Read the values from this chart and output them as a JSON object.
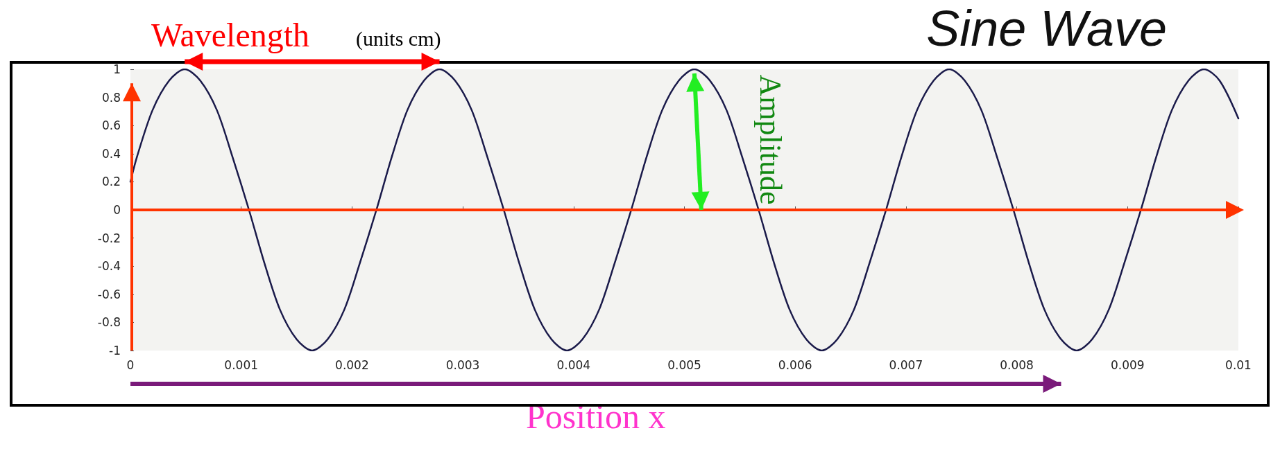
{
  "chart_data": {
    "type": "line",
    "title": "Sine Wave",
    "xlabel": "Position x",
    "x": [
      0,
      6e-05,
      0.0002,
      0.00035,
      0.00049,
      0.00063,
      0.00078,
      0.00092,
      0.00107,
      0.00121,
      0.00135,
      0.0015,
      0.00164,
      0.00178,
      0.00193,
      0.00207,
      0.00222,
      0.00236,
      0.0025,
      0.00265,
      0.00279,
      0.00293,
      0.00308,
      0.00322,
      0.00337,
      0.00351,
      0.00365,
      0.0038,
      0.00394,
      0.00408,
      0.00423,
      0.00437,
      0.00452,
      0.00466,
      0.0048,
      0.00495,
      0.00509,
      0.00523,
      0.00538,
      0.00552,
      0.00567,
      0.00581,
      0.00595,
      0.0061,
      0.00624,
      0.00638,
      0.00653,
      0.00667,
      0.00682,
      0.00696,
      0.0071,
      0.00725,
      0.00739,
      0.00753,
      0.00768,
      0.00782,
      0.00797,
      0.00811,
      0.00825,
      0.0084,
      0.00854,
      0.00868,
      0.00883,
      0.00897,
      0.00912,
      0.00926,
      0.0094,
      0.00955,
      0.00969,
      0.00983,
      0.01
    ],
    "series": [
      {
        "color": "#1a1a4a",
        "values": [
          0.2,
          0.38,
          0.71,
          0.92,
          1,
          0.92,
          0.71,
          0.38,
          0,
          -0.38,
          -0.71,
          -0.92,
          -1,
          -0.92,
          -0.71,
          -0.38,
          0,
          0.38,
          0.71,
          0.92,
          1,
          0.92,
          0.71,
          0.38,
          0,
          -0.38,
          -0.71,
          -0.92,
          -1,
          -0.92,
          -0.71,
          -0.38,
          0,
          0.38,
          0.71,
          0.92,
          1,
          0.92,
          0.71,
          0.38,
          0,
          -0.38,
          -0.71,
          -0.92,
          -1,
          -0.92,
          -0.71,
          -0.38,
          0,
          0.38,
          0.71,
          0.92,
          1,
          0.92,
          0.71,
          0.38,
          0,
          -0.38,
          -0.71,
          -0.92,
          -1,
          -0.92,
          -0.71,
          -0.38,
          0,
          0.38,
          0.71,
          0.92,
          1,
          0.92,
          0.65
        ]
      }
    ],
    "xlim": [
      0,
      0.01
    ],
    "xticks": [
      0,
      0.001,
      0.002,
      0.003,
      0.004,
      0.005,
      0.006,
      0.007,
      0.008,
      0.009,
      0.01
    ],
    "ylim": [
      -1,
      1
    ],
    "yticks": [
      -1,
      -0.8,
      -0.6,
      -0.4,
      -0.2,
      0,
      0.2,
      0.4,
      0.6,
      0.8,
      1
    ],
    "annotations": [
      "Wavelength",
      "(units cm)",
      "Amplitude"
    ],
    "ref_lines": [
      {
        "axis": "y",
        "value": 0,
        "color": "#ff3300"
      }
    ],
    "grid": false,
    "marker": "none",
    "line_style": "solid"
  }
}
